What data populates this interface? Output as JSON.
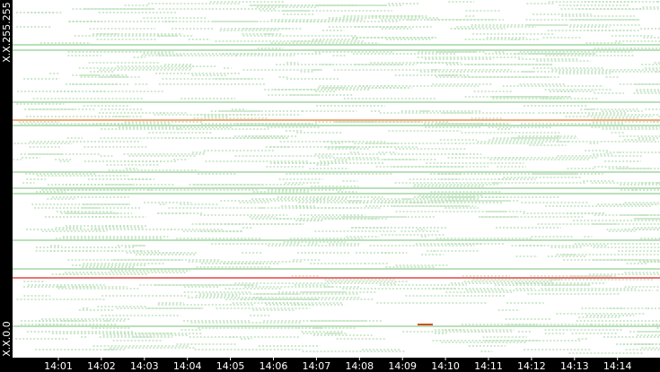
{
  "y_axis": {
    "top_label": "X.X.255.255",
    "bottom_label": "X.X.0.0"
  },
  "x_axis": {
    "labels": [
      "14:01",
      "14:02",
      "14:03",
      "14:04",
      "14:05",
      "14:06",
      "14:07",
      "14:08",
      "14:09",
      "14:10",
      "14:11",
      "14:12",
      "14:13",
      "14:14"
    ]
  }
}
